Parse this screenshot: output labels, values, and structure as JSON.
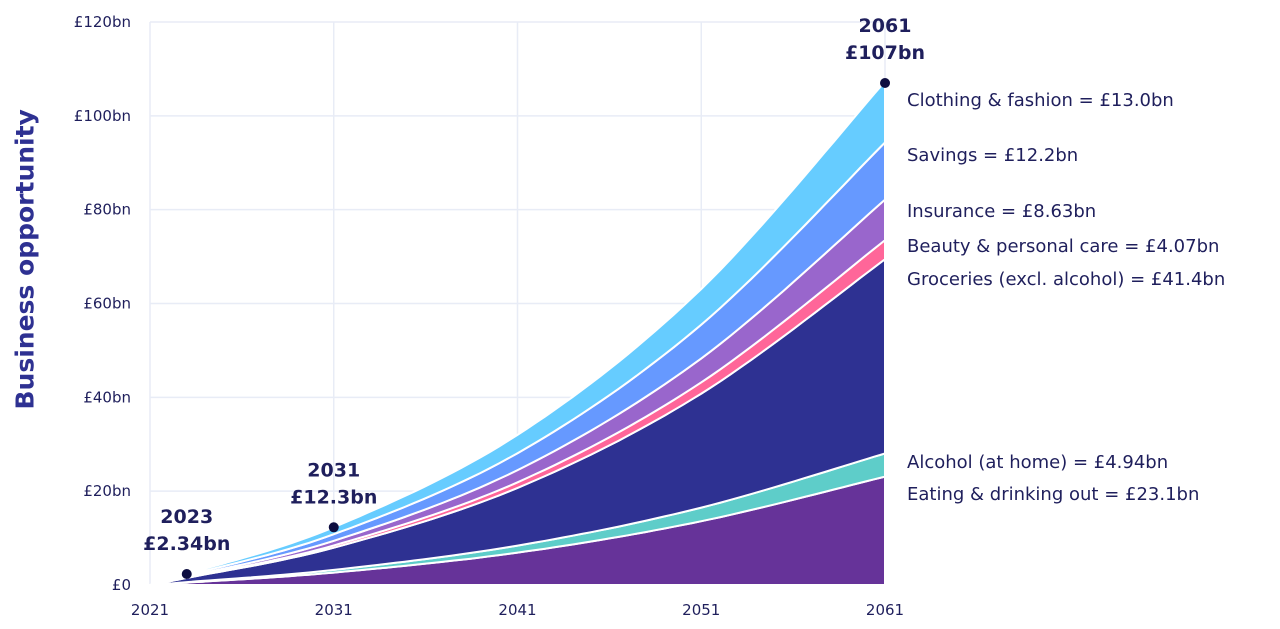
{
  "chart_data": {
    "type": "area",
    "stacked": true,
    "ylabel": "Business opportunity",
    "xlim": [
      2021,
      2061
    ],
    "ylim": [
      0,
      120
    ],
    "x_ticks": [
      "2021",
      "2031",
      "2041",
      "2051",
      "2061"
    ],
    "y_ticks": [
      "£0",
      "£20bn",
      "£40bn",
      "£60bn",
      "£80bn",
      "£100bn",
      "£120bn"
    ],
    "y_tick_values": [
      0,
      20,
      40,
      60,
      80,
      100,
      120
    ],
    "grid": true,
    "legend_placement": "right",
    "x": [
      2021,
      2023,
      2031,
      2041,
      2051,
      2061
    ],
    "series": [
      {
        "name": "Eating & drinking out",
        "label": "Eating & drinking out = £23.1bn",
        "color": "#663399",
        "values": [
          0,
          0.5,
          2.65,
          6.9,
          13.6,
          23.1
        ]
      },
      {
        "name": "Alcohol (at home)",
        "label": "Alcohol (at home) = £4.94bn",
        "color": "#5ecdc9",
        "values": [
          0,
          0.11,
          0.57,
          1.5,
          2.9,
          4.94
        ]
      },
      {
        "name": "Groceries (excl. alcohol)",
        "label": "Groceries (excl. alcohol) = £41.4bn",
        "color": "#2e3192",
        "values": [
          0,
          0.9,
          4.74,
          12.3,
          24.3,
          41.4
        ]
      },
      {
        "name": "Beauty & personal care",
        "label": "Beauty & personal care = £4.07bn",
        "color": "#ff6699",
        "values": [
          0,
          0.09,
          0.47,
          1.2,
          2.4,
          4.07
        ]
      },
      {
        "name": "Insurance",
        "label": "Insurance = £8.63bn",
        "color": "#9966cc",
        "values": [
          0,
          0.19,
          0.99,
          2.6,
          5.1,
          8.63
        ]
      },
      {
        "name": "Savings",
        "label": "Savings = £12.2bn",
        "color": "#6699ff",
        "values": [
          0,
          0.27,
          1.4,
          3.6,
          7.2,
          12.2
        ]
      },
      {
        "name": "Clothing & fashion",
        "label": "Clothing & fashion = £13.0bn",
        "color": "#66ccff",
        "values": [
          0,
          0.28,
          1.49,
          3.9,
          7.6,
          13.0
        ]
      }
    ],
    "annotations": [
      {
        "year": "2023",
        "value_label": "£2.34bn",
        "x": 2023,
        "y": 2.34
      },
      {
        "year": "2031",
        "value_label": "£12.3bn",
        "x": 2031,
        "y": 12.3
      },
      {
        "year": "2061",
        "value_label": "£107bn",
        "x": 2061,
        "y": 107
      }
    ]
  }
}
